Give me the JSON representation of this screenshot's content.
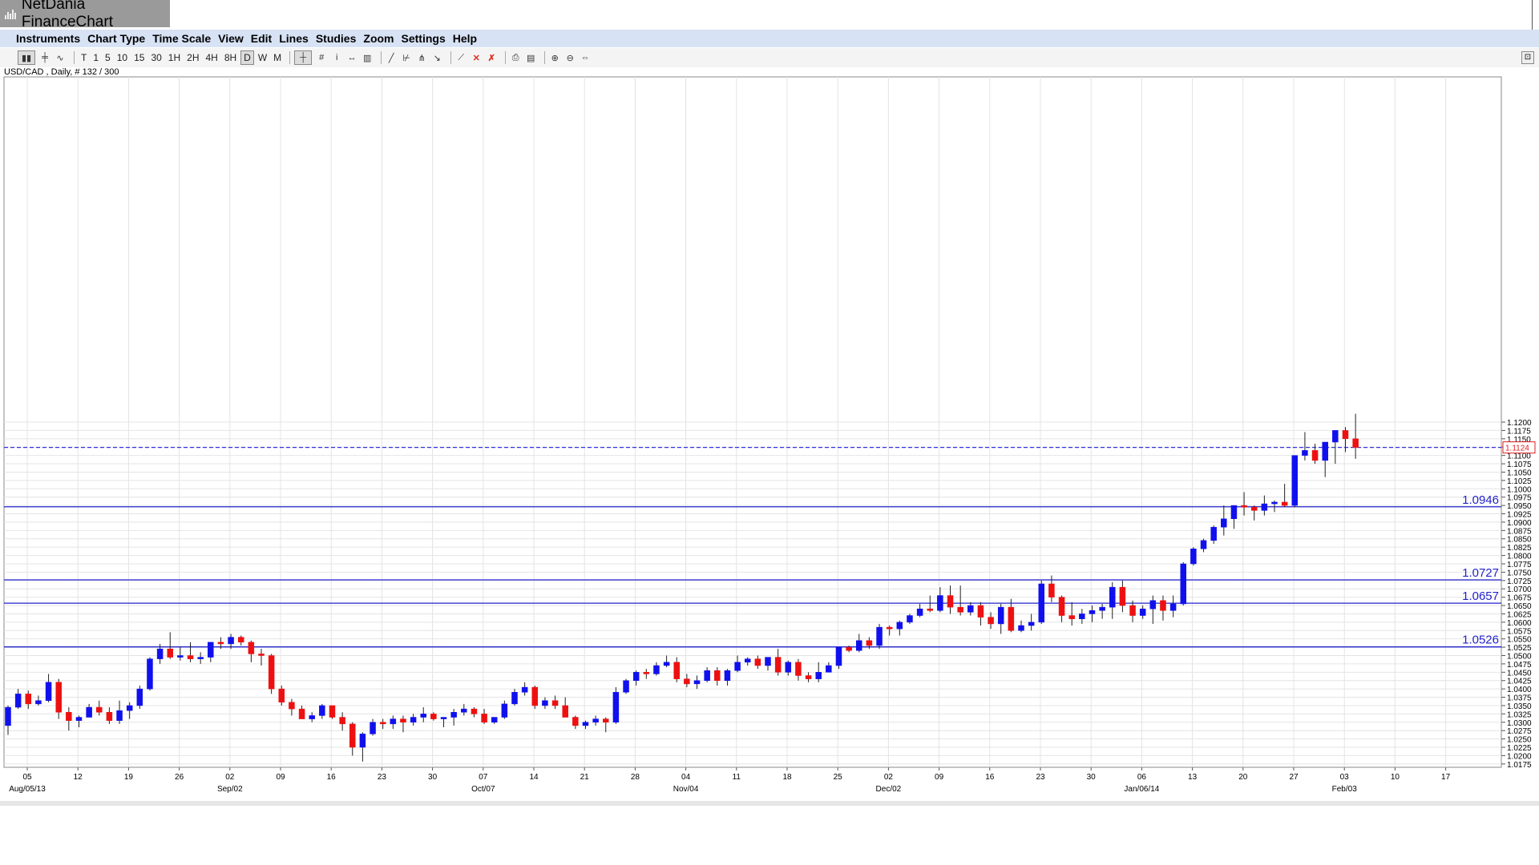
{
  "app": {
    "title": "NetDania FinanceChart"
  },
  "menu": [
    "Instruments",
    "Chart Type",
    "Time Scale",
    "View",
    "Edit",
    "Lines",
    "Studies",
    "Zoom",
    "Settings",
    "Help"
  ],
  "toolbar": {
    "chart_type_icons": [
      "candlestick-icon",
      "bar-chart-icon",
      "line-chart-icon"
    ],
    "timescales": [
      "T",
      "1",
      "5",
      "10",
      "15",
      "30",
      "1H",
      "2H",
      "4H",
      "8H",
      "D",
      "W",
      "M"
    ],
    "active_timescale": "D",
    "tool_icons": [
      "crosshair-icon",
      "grid-icon",
      "info-icon",
      "pan-icon",
      "volume-icon",
      "trendline-icon",
      "fibonacci-icon",
      "andrews-pitchfork-icon",
      "arrow-icon",
      "draw-line-icon",
      "delete-icon",
      "delete-all-icon",
      "print-icon",
      "print-preview-icon",
      "zoom-in-icon",
      "zoom-out-icon",
      "fit-icon"
    ],
    "corner_icon": "expand-icon"
  },
  "symbol_label": "USD/CAD , Daily, # 132 / 300",
  "chart_data": {
    "type": "candlestick",
    "instrument": "USD/CAD",
    "interval": "Daily",
    "ylim": [
      1.0165,
      1.2235
    ],
    "y_ticks": [
      "1.0175",
      "1.0200",
      "1.0225",
      "1.0250",
      "1.0275",
      "1.0300",
      "1.0325",
      "1.0350",
      "1.0375",
      "1.0400",
      "1.0425",
      "1.0450",
      "1.0475",
      "1.0500",
      "1.0525",
      "1.0550",
      "1.0575",
      "1.0600",
      "1.0625",
      "1.0650",
      "1.0675",
      "1.0700",
      "1.0725",
      "1.0750",
      "1.0775",
      "1.0800",
      "1.0825",
      "1.0850",
      "1.0875",
      "1.0900",
      "1.0925",
      "1.0950",
      "1.0975",
      "1.1000",
      "1.1025",
      "1.1050",
      "1.1075",
      "1.1100",
      "1.1125",
      "1.1150",
      "1.1175",
      "1.1200"
    ],
    "x_ticks": [
      "05",
      "12",
      "19",
      "26",
      "02",
      "09",
      "16",
      "23",
      "30",
      "07",
      "14",
      "21",
      "28",
      "04",
      "11",
      "18",
      "25",
      "02",
      "09",
      "16",
      "23",
      "30",
      "06",
      "13",
      "20",
      "27",
      "03",
      "10",
      "17"
    ],
    "x_sublabels": [
      {
        "tick": 0,
        "text": "Aug/05/13"
      },
      {
        "tick": 4,
        "text": "Sep/02"
      },
      {
        "tick": 9,
        "text": "Oct/07"
      },
      {
        "tick": 13,
        "text": "Nov/04"
      },
      {
        "tick": 17,
        "text": "Dec/02"
      },
      {
        "tick": 22,
        "text": "Jan/06/14"
      },
      {
        "tick": 26,
        "text": "Feb/03"
      }
    ],
    "current_price": "1.1124",
    "horizontal_lines": [
      {
        "value": 1.0946,
        "label": "1.0946"
      },
      {
        "value": 1.0727,
        "label": "1.0727"
      },
      {
        "value": 1.0657,
        "label": "1.0657"
      },
      {
        "value": 1.0526,
        "label": "1.0526"
      }
    ],
    "colors": {
      "up": "#1010ee",
      "down": "#ee1010",
      "level": "#2222cc",
      "current": "#3333dd",
      "grid": "#e4e4e4"
    },
    "candles": [
      [
        1.029,
        1.035,
        1.0262,
        1.0345
      ],
      [
        1.0345,
        1.04,
        1.034,
        1.0385
      ],
      [
        1.0385,
        1.0395,
        1.034,
        1.0355
      ],
      [
        1.0355,
        1.038,
        1.035,
        1.0365
      ],
      [
        1.0365,
        1.0445,
        1.036,
        1.042
      ],
      [
        1.042,
        1.043,
        1.031,
        1.033
      ],
      [
        1.033,
        1.0345,
        1.0275,
        1.0305
      ],
      [
        1.0305,
        1.032,
        1.0285,
        1.0315
      ],
      [
        1.0315,
        1.0355,
        1.0315,
        1.0345
      ],
      [
        1.0345,
        1.0365,
        1.032,
        1.033
      ],
      [
        1.033,
        1.0345,
        1.0295,
        1.0305
      ],
      [
        1.0305,
        1.0365,
        1.0295,
        1.0335
      ],
      [
        1.0335,
        1.036,
        1.031,
        1.035
      ],
      [
        1.035,
        1.041,
        1.034,
        1.04
      ],
      [
        1.04,
        1.0495,
        1.0395,
        1.049
      ],
      [
        1.049,
        1.0535,
        1.0475,
        1.052
      ],
      [
        1.052,
        1.057,
        1.049,
        1.0495
      ],
      [
        1.0495,
        1.0525,
        1.0485,
        1.05
      ],
      [
        1.05,
        1.054,
        1.048,
        1.049
      ],
      [
        1.049,
        1.051,
        1.0475,
        1.0495
      ],
      [
        1.0495,
        1.053,
        1.048,
        1.054
      ],
      [
        1.054,
        1.0555,
        1.052,
        1.0535
      ],
      [
        1.0535,
        1.0565,
        1.052,
        1.0555
      ],
      [
        1.0555,
        1.056,
        1.053,
        1.054
      ],
      [
        1.054,
        1.0545,
        1.048,
        1.0505
      ],
      [
        1.0505,
        1.052,
        1.047,
        1.05
      ],
      [
        1.05,
        1.0505,
        1.0385,
        1.04
      ],
      [
        1.04,
        1.041,
        1.035,
        1.036
      ],
      [
        1.036,
        1.037,
        1.032,
        1.034
      ],
      [
        1.034,
        1.035,
        1.031,
        1.031
      ],
      [
        1.031,
        1.033,
        1.03,
        1.032
      ],
      [
        1.032,
        1.0355,
        1.031,
        1.035
      ],
      [
        1.035,
        1.0345,
        1.031,
        1.0315
      ],
      [
        1.0315,
        1.033,
        1.0275,
        1.0295
      ],
      [
        1.0295,
        1.03,
        1.02,
        1.0225
      ],
      [
        1.0225,
        1.027,
        1.0182,
        1.0265
      ],
      [
        1.0265,
        1.031,
        1.026,
        1.03
      ],
      [
        1.03,
        1.031,
        1.028,
        1.0295
      ],
      [
        1.0295,
        1.032,
        1.028,
        1.031
      ],
      [
        1.031,
        1.032,
        1.027,
        1.03
      ],
      [
        1.03,
        1.0325,
        1.029,
        1.0315
      ],
      [
        1.0315,
        1.0345,
        1.03,
        1.0325
      ],
      [
        1.0325,
        1.033,
        1.0305,
        1.031
      ],
      [
        1.031,
        1.0315,
        1.0285,
        1.0315
      ],
      [
        1.0315,
        1.034,
        1.029,
        1.033
      ],
      [
        1.033,
        1.0355,
        1.032,
        1.034
      ],
      [
        1.034,
        1.0345,
        1.0315,
        1.0325
      ],
      [
        1.0325,
        1.034,
        1.0295,
        1.03
      ],
      [
        1.03,
        1.0315,
        1.0295,
        1.0315
      ],
      [
        1.0315,
        1.0365,
        1.031,
        1.0355
      ],
      [
        1.0355,
        1.04,
        1.035,
        1.039
      ],
      [
        1.039,
        1.042,
        1.038,
        1.0405
      ],
      [
        1.0405,
        1.041,
        1.034,
        1.035
      ],
      [
        1.035,
        1.0375,
        1.034,
        1.0365
      ],
      [
        1.0365,
        1.038,
        1.034,
        1.035
      ],
      [
        1.035,
        1.0375,
        1.033,
        1.0315
      ],
      [
        1.0315,
        1.032,
        1.028,
        1.029
      ],
      [
        1.029,
        1.0305,
        1.028,
        1.03
      ],
      [
        1.03,
        1.032,
        1.029,
        1.031
      ],
      [
        1.031,
        1.0315,
        1.027,
        1.03
      ],
      [
        1.03,
        1.0405,
        1.0295,
        1.039
      ],
      [
        1.039,
        1.043,
        1.0385,
        1.0425
      ],
      [
        1.0425,
        1.0455,
        1.041,
        1.045
      ],
      [
        1.045,
        1.046,
        1.043,
        1.0445
      ],
      [
        1.0445,
        1.048,
        1.044,
        1.047
      ],
      [
        1.047,
        1.05,
        1.0465,
        1.048
      ],
      [
        1.048,
        1.0495,
        1.042,
        1.043
      ],
      [
        1.043,
        1.0445,
        1.0405,
        1.0415
      ],
      [
        1.0415,
        1.044,
        1.04,
        1.0425
      ],
      [
        1.0425,
        1.0465,
        1.042,
        1.0455
      ],
      [
        1.0455,
        1.0465,
        1.041,
        1.0425
      ],
      [
        1.0425,
        1.046,
        1.041,
        1.0455
      ],
      [
        1.0455,
        1.05,
        1.045,
        1.048
      ],
      [
        1.048,
        1.0495,
        1.047,
        1.049
      ],
      [
        1.049,
        1.05,
        1.046,
        1.047
      ],
      [
        1.047,
        1.0495,
        1.0455,
        1.0495
      ],
      [
        1.0495,
        1.052,
        1.044,
        1.045
      ],
      [
        1.045,
        1.0485,
        1.044,
        1.048
      ],
      [
        1.048,
        1.049,
        1.0425,
        1.044
      ],
      [
        1.044,
        1.045,
        1.042,
        1.043
      ],
      [
        1.043,
        1.048,
        1.042,
        1.045
      ],
      [
        1.045,
        1.048,
        1.045,
        1.047
      ],
      [
        1.047,
        1.0525,
        1.046,
        1.0525
      ],
      [
        1.0525,
        1.053,
        1.051,
        1.0515
      ],
      [
        1.0515,
        1.0565,
        1.051,
        1.0545
      ],
      [
        1.0545,
        1.0555,
        1.052,
        1.053
      ],
      [
        1.053,
        1.0595,
        1.052,
        1.0585
      ],
      [
        1.0585,
        1.059,
        1.056,
        1.058
      ],
      [
        1.058,
        1.0605,
        1.056,
        1.06
      ],
      [
        1.06,
        1.0625,
        1.0595,
        1.062
      ],
      [
        1.062,
        1.0655,
        1.0615,
        1.064
      ],
      [
        1.064,
        1.068,
        1.063,
        1.0635
      ],
      [
        1.0635,
        1.0705,
        1.063,
        1.068
      ],
      [
        1.068,
        1.071,
        1.0625,
        1.0645
      ],
      [
        1.0645,
        1.071,
        1.062,
        1.063
      ],
      [
        1.063,
        1.066,
        1.062,
        1.065
      ],
      [
        1.065,
        1.066,
        1.059,
        1.0615
      ],
      [
        1.0615,
        1.063,
        1.058,
        1.0595
      ],
      [
        1.0595,
        1.0655,
        1.0565,
        1.0645
      ],
      [
        1.0645,
        1.067,
        1.057,
        1.0575
      ],
      [
        1.0575,
        1.0605,
        1.057,
        1.059
      ],
      [
        1.059,
        1.0625,
        1.0575,
        1.06
      ],
      [
        1.06,
        1.0725,
        1.0595,
        1.0715
      ],
      [
        1.0715,
        1.074,
        1.066,
        1.0675
      ],
      [
        1.0675,
        1.068,
        1.06,
        1.062
      ],
      [
        1.062,
        1.066,
        1.059,
        1.061
      ],
      [
        1.061,
        1.064,
        1.0595,
        1.0625
      ],
      [
        1.0625,
        1.065,
        1.06,
        1.0635
      ],
      [
        1.0635,
        1.0655,
        1.061,
        1.0645
      ],
      [
        1.0645,
        1.072,
        1.061,
        1.0705
      ],
      [
        1.0705,
        1.0725,
        1.063,
        1.065
      ],
      [
        1.065,
        1.0665,
        1.06,
        1.062
      ],
      [
        1.062,
        1.065,
        1.061,
        1.064
      ],
      [
        1.064,
        1.068,
        1.0595,
        1.0665
      ],
      [
        1.0665,
        1.068,
        1.0605,
        1.0635
      ],
      [
        1.0635,
        1.068,
        1.0615,
        1.0655
      ],
      [
        1.0655,
        1.078,
        1.065,
        1.0775
      ],
      [
        1.0775,
        1.0825,
        1.077,
        1.082
      ],
      [
        1.082,
        1.085,
        1.081,
        1.0845
      ],
      [
        1.0845,
        1.089,
        1.0835,
        1.0885
      ],
      [
        1.0885,
        1.095,
        1.086,
        1.091
      ],
      [
        1.091,
        1.0935,
        1.088,
        1.095
      ],
      [
        1.095,
        1.099,
        1.092,
        1.0945
      ],
      [
        1.0945,
        1.095,
        1.0905,
        1.0935
      ],
      [
        1.0935,
        1.098,
        1.092,
        1.0955
      ],
      [
        1.0955,
        1.0965,
        1.093,
        1.096
      ],
      [
        1.096,
        1.1015,
        1.0945,
        1.095
      ],
      [
        1.095,
        1.11,
        1.0945,
        1.11
      ],
      [
        1.11,
        1.117,
        1.1085,
        1.1115
      ],
      [
        1.1115,
        1.1135,
        1.1075,
        1.1085
      ],
      [
        1.1085,
        1.112,
        1.1035,
        1.114
      ],
      [
        1.114,
        1.1175,
        1.1075,
        1.1175
      ],
      [
        1.1175,
        1.1185,
        1.111,
        1.115
      ],
      [
        1.115,
        1.1225,
        1.109,
        1.1124
      ]
    ]
  }
}
